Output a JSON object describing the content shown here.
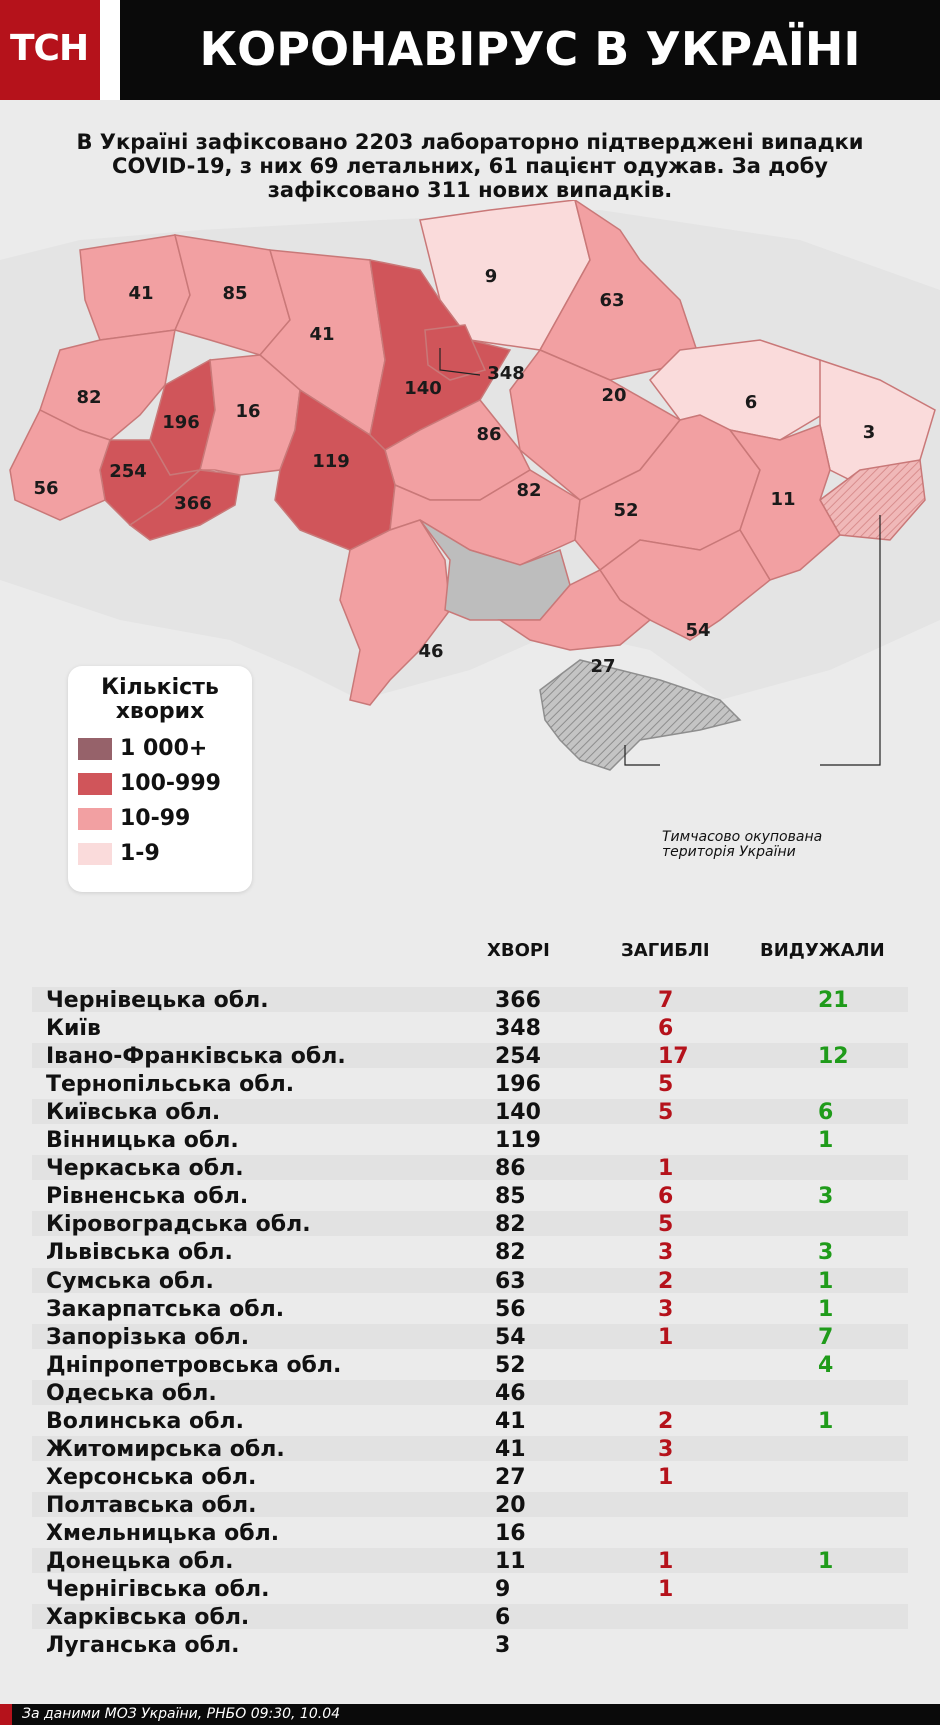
{
  "header": {
    "logo": "ТСН",
    "title": "КОРОНАВІРУС В УКРАЇНІ"
  },
  "summary": "В Україні зафіксовано 2203 лабораторно підтверджені випадки COVID-19, з них 69 летальних, 61 пацієнт одужав. За добу зафіксовано 311 нових випадків.",
  "map": {
    "labels": [
      "41",
      "85",
      "41",
      "9",
      "63",
      "348",
      "140",
      "20",
      "82",
      "196",
      "16",
      "6",
      "3",
      "86",
      "119",
      "254",
      "56",
      "366",
      "82",
      "52",
      "11",
      "54",
      "46",
      "27"
    ],
    "colors": {
      "range_1000_plus": "#96626a",
      "range_100_999": "#d0555a",
      "range_10_99": "#f2a0a2",
      "range_1_9": "#fadbdb",
      "no_data": "#bdbdbd",
      "occupied": "#b3b3b3"
    },
    "occupied_note_line1": "Тимчасово окупована",
    "occupied_note_line2": "територія України"
  },
  "legend": {
    "title_line1": "Кількість",
    "title_line2": "хворих",
    "items": [
      {
        "label": "1 000+",
        "color": "#96626a"
      },
      {
        "label": "100-999",
        "color": "#d0555a"
      },
      {
        "label": "10-99",
        "color": "#f2a0a2"
      },
      {
        "label": "1-9",
        "color": "#fadbdb"
      }
    ]
  },
  "table": {
    "headers": {
      "cases": "ХВОРІ",
      "deaths": "ЗАГИБЛІ",
      "recovered": "ВИДУЖАЛИ"
    },
    "rows": [
      {
        "name": "Чернівецька обл.",
        "cases": "366",
        "deaths": "7",
        "recovered": "21"
      },
      {
        "name": "Київ",
        "cases": "348",
        "deaths": "6",
        "recovered": ""
      },
      {
        "name": "Івано-Франківська обл.",
        "cases": "254",
        "deaths": "17",
        "recovered": "12"
      },
      {
        "name": "Тернопільська обл.",
        "cases": "196",
        "deaths": "5",
        "recovered": ""
      },
      {
        "name": "Київська обл.",
        "cases": "140",
        "deaths": "5",
        "recovered": "6"
      },
      {
        "name": "Вінницька обл.",
        "cases": "119",
        "deaths": "",
        "recovered": "1"
      },
      {
        "name": "Черкаська обл.",
        "cases": "86",
        "deaths": "1",
        "recovered": ""
      },
      {
        "name": "Рівненська обл.",
        "cases": "85",
        "deaths": "6",
        "recovered": "3"
      },
      {
        "name": "Кіровоградська обл.",
        "cases": "82",
        "deaths": "5",
        "recovered": ""
      },
      {
        "name": "Львівська обл.",
        "cases": "82",
        "deaths": "3",
        "recovered": "3"
      },
      {
        "name": "Сумська обл.",
        "cases": "63",
        "deaths": "2",
        "recovered": "1"
      },
      {
        "name": "Закарпатська обл.",
        "cases": "56",
        "deaths": "3",
        "recovered": "1"
      },
      {
        "name": "Запорізька обл.",
        "cases": "54",
        "deaths": "1",
        "recovered": "7"
      },
      {
        "name": "Дніпропетровська обл.",
        "cases": "52",
        "deaths": "",
        "recovered": "4"
      },
      {
        "name": "Одеська обл.",
        "cases": "46",
        "deaths": "",
        "recovered": ""
      },
      {
        "name": "Волинська обл.",
        "cases": "41",
        "deaths": "2",
        "recovered": "1"
      },
      {
        "name": "Житомирська обл.",
        "cases": "41",
        "deaths": "3",
        "recovered": ""
      },
      {
        "name": "Херсонська обл.",
        "cases": "27",
        "deaths": "1",
        "recovered": ""
      },
      {
        "name": "Полтавська обл.",
        "cases": "20",
        "deaths": "",
        "recovered": ""
      },
      {
        "name": "Хмельницька обл.",
        "cases": "16",
        "deaths": "",
        "recovered": ""
      },
      {
        "name": "Донецька обл.",
        "cases": "11",
        "deaths": "1",
        "recovered": "1"
      },
      {
        "name": "Чернігівська обл.",
        "cases": "9",
        "deaths": "1",
        "recovered": ""
      },
      {
        "name": "Харківська обл.",
        "cases": "6",
        "deaths": "",
        "recovered": ""
      },
      {
        "name": "Луганська обл.",
        "cases": "3",
        "deaths": "",
        "recovered": ""
      }
    ]
  },
  "footer": "За даними МОЗ України, РНБО  09:30, 10.04"
}
